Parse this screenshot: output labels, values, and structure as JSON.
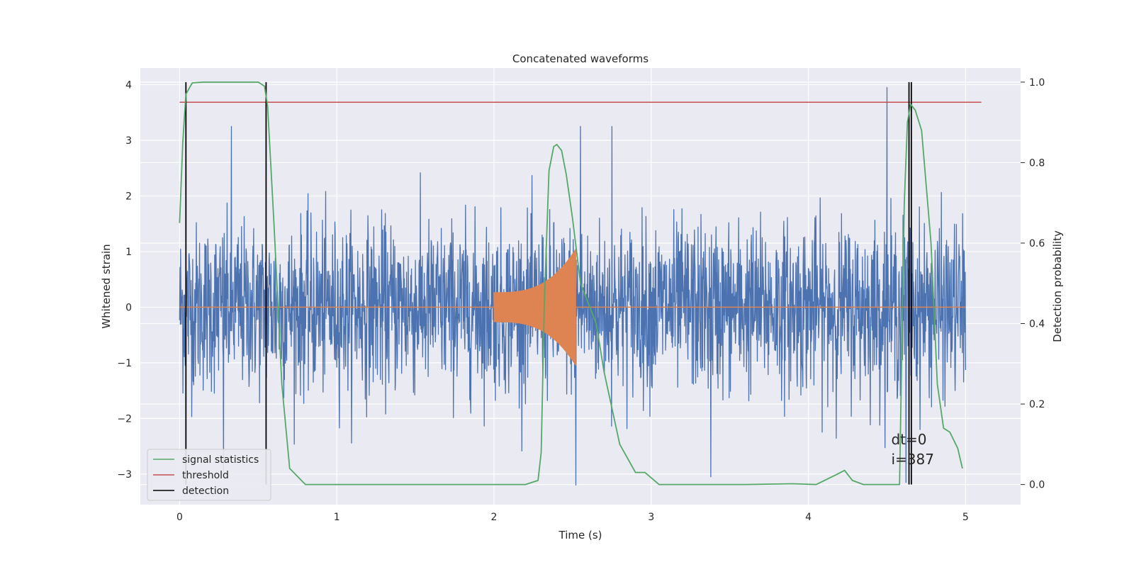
{
  "chart_data": {
    "type": "line",
    "title": "Concatenated waveforms",
    "xlabel": "Time (s)",
    "ylabel": "Whitened strain",
    "y2label": "Detection probability",
    "xlim": [
      -0.25,
      5.35
    ],
    "ylim": [
      -3.55,
      4.3
    ],
    "y2lim": [
      -0.05,
      1.035
    ],
    "x_ticks": [
      0,
      1,
      2,
      3,
      4,
      5
    ],
    "y_ticks": [
      -3,
      -2,
      -1,
      0,
      1,
      2,
      3,
      4
    ],
    "y2_ticks": [
      0.0,
      0.2,
      0.4,
      0.6,
      0.8,
      1.0
    ],
    "x_tick_labels": [
      "0",
      "1",
      "2",
      "3",
      "4",
      "5"
    ],
    "y_tick_labels": [
      "−3",
      "−2",
      "−1",
      "0",
      "1",
      "2",
      "3",
      "4"
    ],
    "y2_tick_labels": [
      "0.0",
      "0.2",
      "0.4",
      "0.6",
      "0.8",
      "1.0"
    ],
    "grid": true,
    "legend_position": "lower-left",
    "noise": {
      "color": "#4c72b0",
      "x_start": 0,
      "x_end": 5,
      "typical_amplitude": 2.0,
      "peaks": [
        {
          "x": 0.33,
          "y": 3.25
        },
        {
          "x": 2.55,
          "y": 3.25
        },
        {
          "x": 2.75,
          "y": 3.25
        },
        {
          "x": 4.5,
          "y": 3.95
        },
        {
          "x": 2.52,
          "y": -3.2
        },
        {
          "x": 3.38,
          "y": -3.05
        },
        {
          "x": 0.28,
          "y": -2.95
        },
        {
          "x": 4.62,
          "y": -3.15
        }
      ]
    },
    "chirp": {
      "color": "#dd8452",
      "x_start": 2.0,
      "x_end": 2.52,
      "amp_start": 0.27,
      "amp_end": 1.05
    },
    "zero_line": {
      "y": 0,
      "x_start": 0,
      "x_end": 5,
      "color": "#dd8452"
    },
    "signal_statistics": {
      "color": "#55a868",
      "x": [
        0,
        0.02,
        0.04,
        0.08,
        0.15,
        0.3,
        0.5,
        0.54,
        0.56,
        0.6,
        0.65,
        0.7,
        0.8,
        1.2,
        2.0,
        2.2,
        2.28,
        2.3,
        2.32,
        2.35,
        2.38,
        2.4,
        2.43,
        2.46,
        2.5,
        2.55,
        2.6,
        2.65,
        2.7,
        2.8,
        2.9,
        2.96,
        3.05,
        3.2,
        3.6,
        3.9,
        4.05,
        4.18,
        4.23,
        4.28,
        4.35,
        4.5,
        4.58,
        4.61,
        4.63,
        4.65,
        4.68,
        4.72,
        4.78,
        4.82,
        4.86,
        4.9,
        4.95,
        4.98
      ],
      "y": [
        0.65,
        0.85,
        0.97,
        0.998,
        1.0,
        1.0,
        1.0,
        0.99,
        0.94,
        0.65,
        0.25,
        0.04,
        0.0,
        0.0,
        0.0,
        0.0,
        0.01,
        0.08,
        0.45,
        0.78,
        0.84,
        0.845,
        0.83,
        0.77,
        0.66,
        0.5,
        0.45,
        0.4,
        0.28,
        0.1,
        0.03,
        0.03,
        0.0,
        0.0,
        0.0,
        0.002,
        0.0,
        0.025,
        0.035,
        0.01,
        0.0,
        0.0,
        0.0,
        0.7,
        0.9,
        0.945,
        0.93,
        0.88,
        0.6,
        0.25,
        0.14,
        0.13,
        0.09,
        0.04
      ]
    },
    "threshold": {
      "color": "#c44e52",
      "y": 0.95,
      "x_start": 0,
      "x_end": 5.1
    },
    "detections": {
      "color": "#000000",
      "x": [
        0.04,
        0.55,
        4.64,
        4.655
      ],
      "y2_bottom": 0.0,
      "y2_top": 1.0
    },
    "annotations": [
      {
        "text": "dt=0",
        "x": 4.5,
        "y2": 0.1
      },
      {
        "text": "i=387",
        "x": 4.5,
        "y2": 0.05
      }
    ],
    "legend": [
      {
        "label": "signal statistics",
        "color": "#55a868"
      },
      {
        "label": "threshold",
        "color": "#c44e52"
      },
      {
        "label": "detection",
        "color": "#000000"
      }
    ]
  },
  "style": {
    "background": "#eaeaf2",
    "grid_color": "#ffffff",
    "text_color": "#262626"
  }
}
